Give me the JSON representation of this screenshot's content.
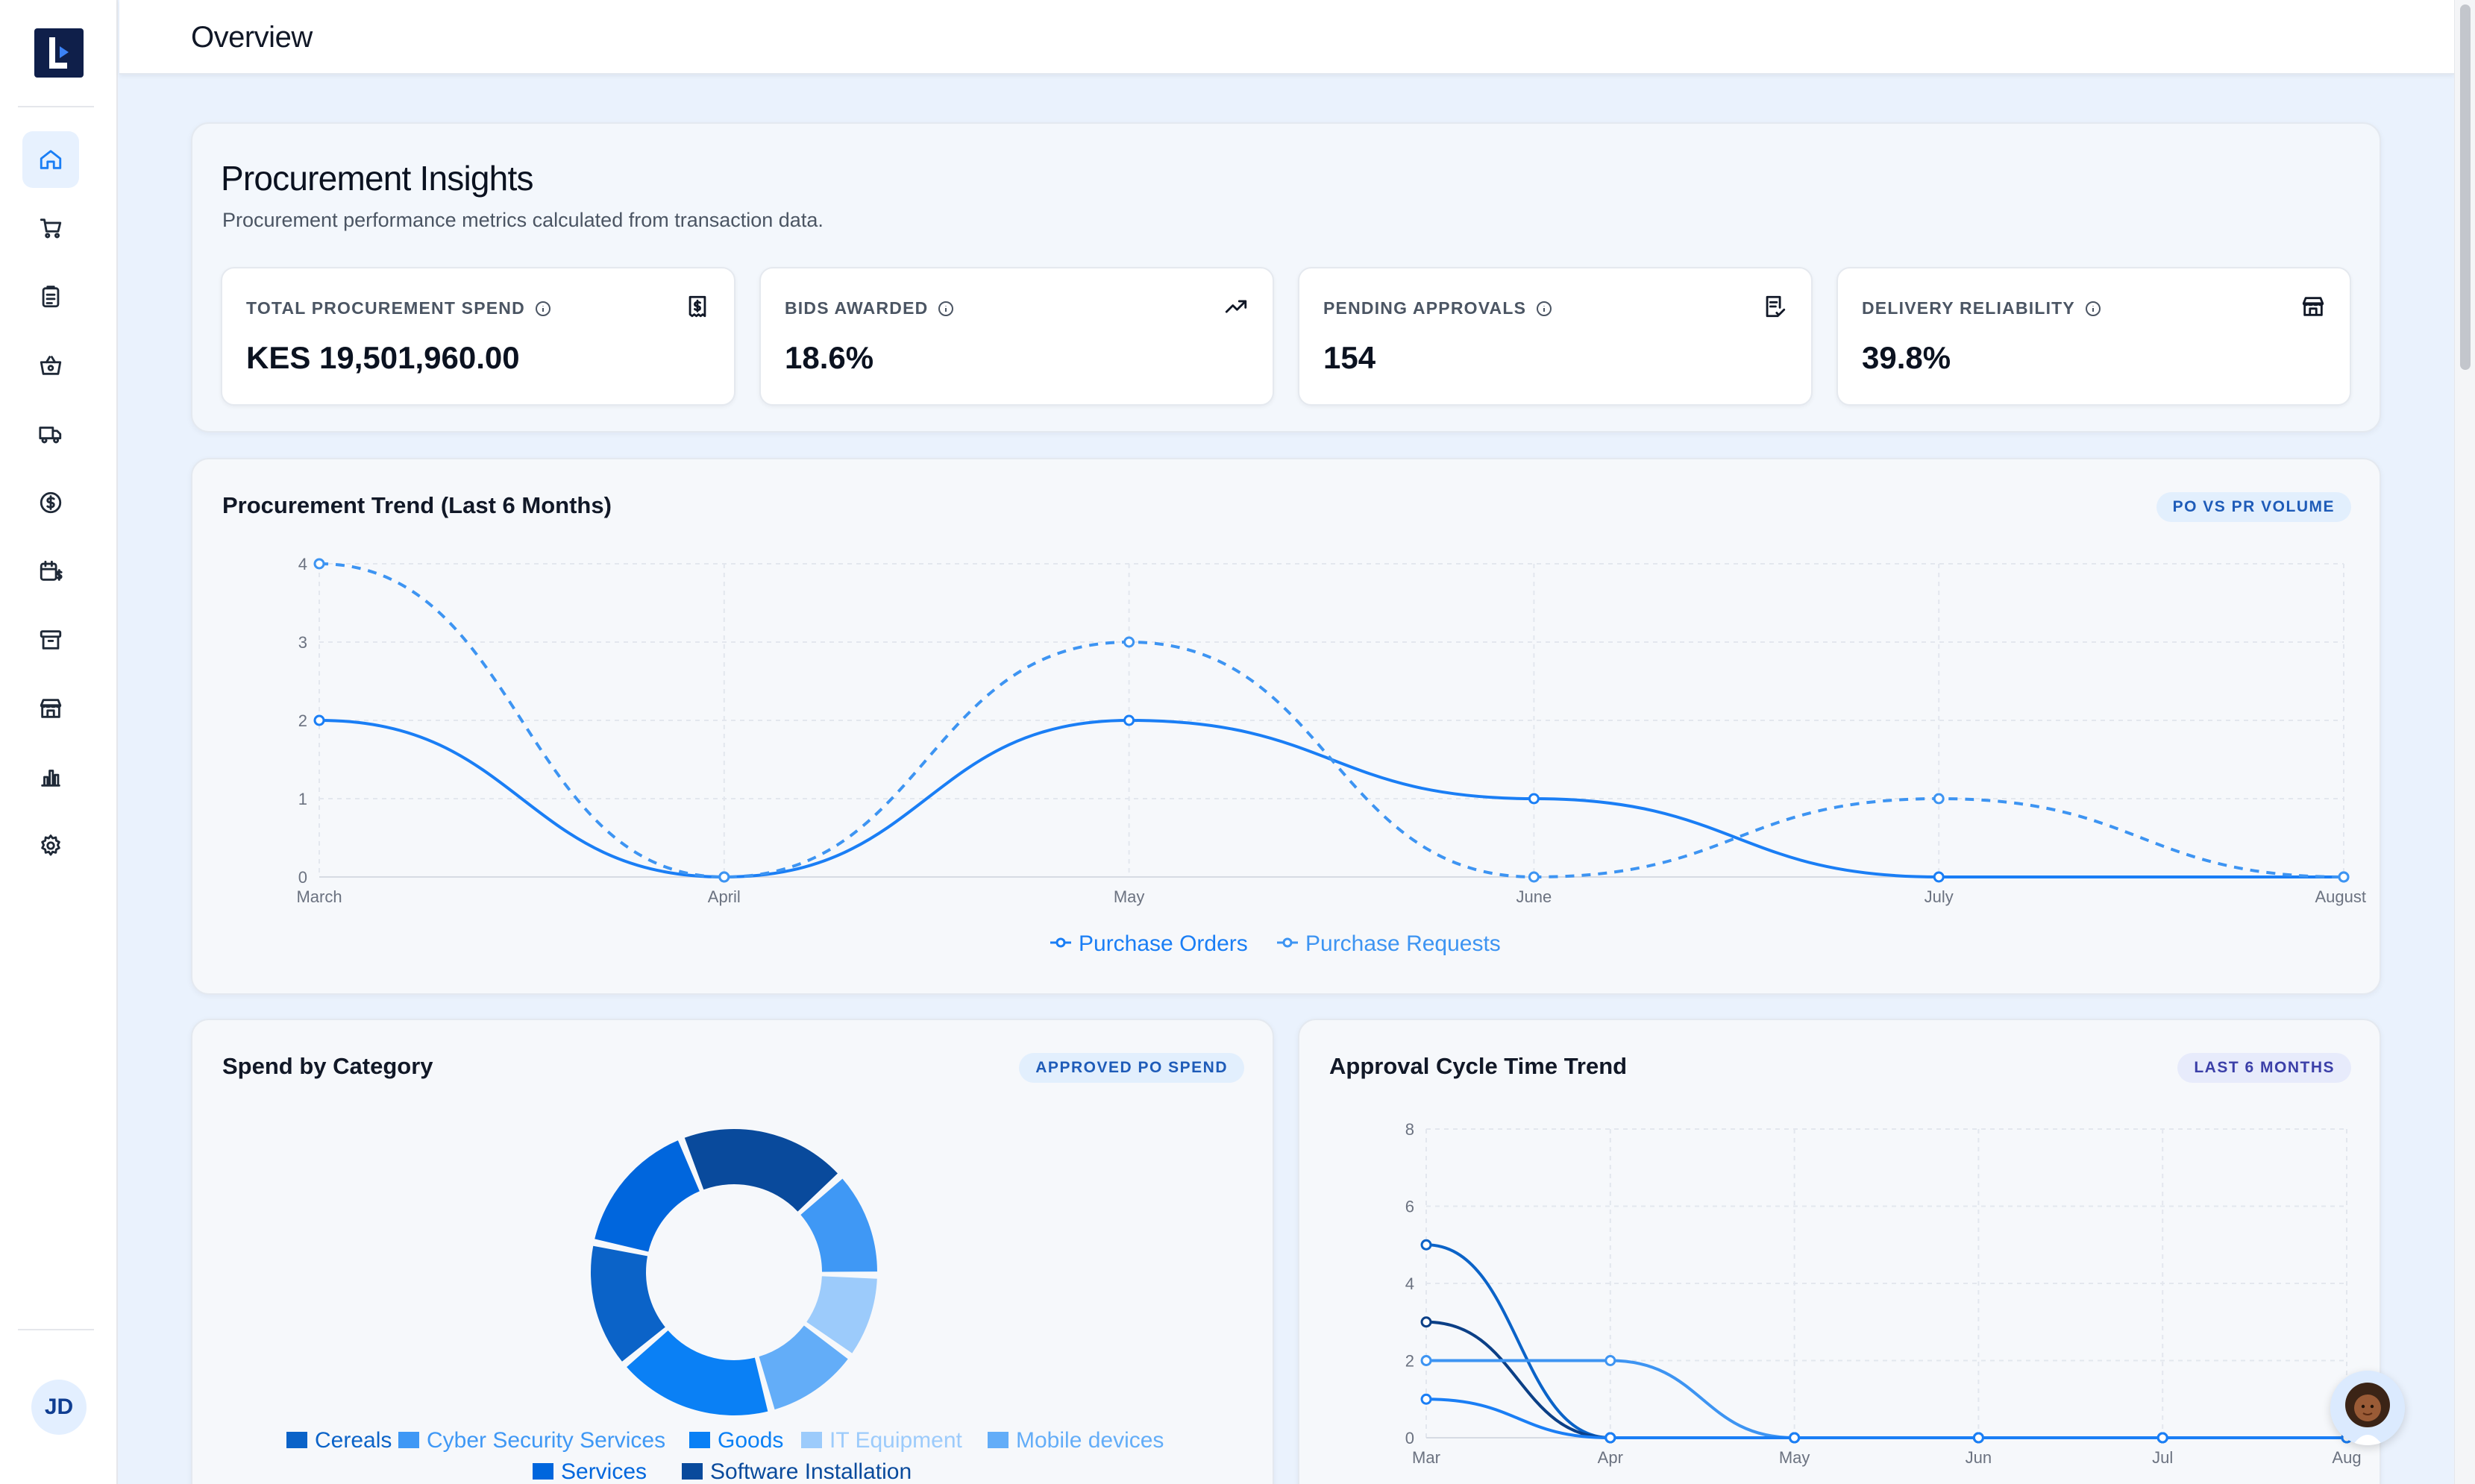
{
  "header": {
    "title": "Overview"
  },
  "sidebar": {
    "items": [
      {
        "name": "home-icon",
        "active": true
      },
      {
        "name": "cart-icon"
      },
      {
        "name": "clipboard-icon"
      },
      {
        "name": "basket-icon"
      },
      {
        "name": "truck-icon"
      },
      {
        "name": "dollar-icon"
      },
      {
        "name": "calendar-dollar-icon"
      },
      {
        "name": "archive-icon"
      },
      {
        "name": "store-icon"
      },
      {
        "name": "bar-chart-icon"
      },
      {
        "name": "gear-icon"
      }
    ],
    "avatar": "JD"
  },
  "insights": {
    "title": "Procurement Insights",
    "subtitle": "Procurement performance metrics calculated from transaction data.",
    "kpis": [
      {
        "label": "TOTAL PROCUREMENT SPEND",
        "value": "KES 19,501,960.00",
        "icon": "receipt-dollar-icon"
      },
      {
        "label": "BIDS AWARDED",
        "value": "18.6%",
        "icon": "trending-up-icon"
      },
      {
        "label": "PENDING APPROVALS",
        "value": "154",
        "icon": "file-check-icon"
      },
      {
        "label": "DELIVERY RELIABILITY",
        "value": "39.8%",
        "icon": "store-icon"
      }
    ]
  },
  "trend": {
    "title": "Procurement Trend (Last 6 Months)",
    "badge": "PO VS PR VOLUME"
  },
  "spend": {
    "title": "Spend by Category",
    "badge": "APPROVED PO SPEND"
  },
  "approval": {
    "title": "Approval Cycle Time Trend",
    "badge": "LAST 6 MONTHS"
  },
  "colors": {
    "accent": "#1a7ef5",
    "dark_blue": "#0b4a9e",
    "light_blue": "#9ccbfb"
  },
  "chart_data": [
    {
      "type": "line",
      "categories": [
        "March",
        "April",
        "May",
        "June",
        "July",
        "August"
      ],
      "ylim": [
        0,
        4
      ],
      "yticks": [
        "0",
        "1",
        "2",
        "3",
        "4"
      ],
      "series": [
        {
          "name": "Purchase Orders",
          "values": [
            2,
            0,
            2,
            1,
            0,
            0
          ],
          "color": "#1a7ef5",
          "dashed": false
        },
        {
          "name": "Purchase Requests",
          "values": [
            4,
            0,
            3,
            0,
            1,
            0
          ],
          "color": "#3d94f2",
          "dashed": true
        }
      ],
      "legend": "bottom",
      "grid": true
    },
    {
      "type": "pie",
      "donut": true,
      "legend": "bottom",
      "slices": [
        {
          "name": "Cereals",
          "value": 12,
          "color": "#0b63c8"
        },
        {
          "name": "Cyber Security Services",
          "value": 10,
          "color": "#3f98f5"
        },
        {
          "name": "Goods",
          "value": 15,
          "color": "#0a80f5"
        },
        {
          "name": "IT Equipment",
          "value": 8,
          "color": "#9ccbfb"
        },
        {
          "name": "Mobile devices",
          "value": 9,
          "color": "#63adf8"
        },
        {
          "name": "Services",
          "value": 13,
          "color": "#0066dd"
        },
        {
          "name": "Software Installation",
          "value": 16,
          "color": "#094a9c"
        }
      ]
    },
    {
      "type": "line",
      "categories": [
        "Mar",
        "Apr",
        "May",
        "Jun",
        "Jul",
        "Aug"
      ],
      "ylim": [
        0,
        8
      ],
      "yticks": [
        "0",
        "2",
        "4",
        "6",
        "8"
      ],
      "series": [
        {
          "values": [
            5,
            0,
            0,
            0,
            0,
            0
          ],
          "color": "#0b63c8"
        },
        {
          "values": [
            3,
            0,
            0,
            0,
            0,
            0
          ],
          "color": "#0b3f86"
        },
        {
          "values": [
            2,
            2,
            0,
            0,
            0,
            0
          ],
          "color": "#3d94f2"
        },
        {
          "values": [
            1,
            0,
            0,
            0,
            0,
            0
          ],
          "color": "#1a7ef5"
        }
      ],
      "grid": true
    }
  ]
}
